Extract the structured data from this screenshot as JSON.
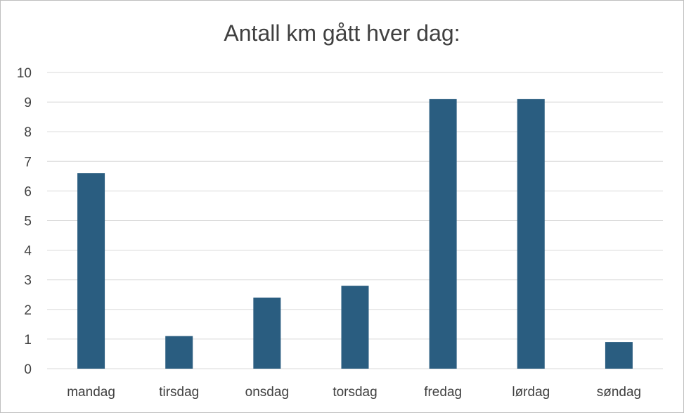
{
  "chart_data": {
    "type": "bar",
    "title": "Antall km gått hver dag:",
    "categories": [
      "mandag",
      "tirsdag",
      "onsdag",
      "torsdag",
      "fredag",
      "lørdag",
      "søndag"
    ],
    "values": [
      6.6,
      1.1,
      2.4,
      2.8,
      9.1,
      9.1,
      0.9
    ],
    "ylim": [
      0,
      10
    ],
    "yticks": [
      "0",
      "1",
      "2",
      "3",
      "4",
      "5",
      "6",
      "7",
      "8",
      "9",
      "10"
    ],
    "grid": true,
    "bar_color": "#2a5d80"
  }
}
